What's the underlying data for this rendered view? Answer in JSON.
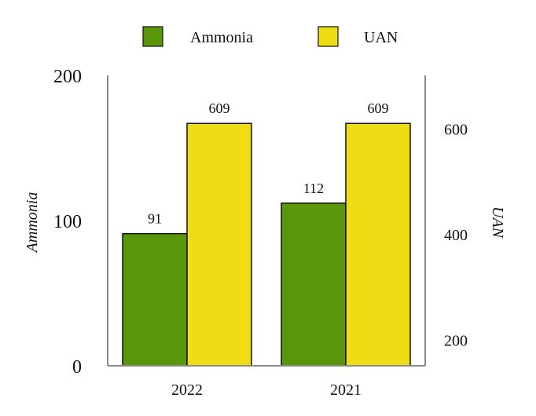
{
  "chart_data": {
    "type": "bar",
    "categories": [
      "2022",
      "2021"
    ],
    "series": [
      {
        "name": "Ammonia",
        "values": [
          91,
          112
        ],
        "axis": "left",
        "color": "#5a960a"
      },
      {
        "name": "UAN",
        "values": [
          609,
          609
        ],
        "axis": "right",
        "color": "#eedd14"
      }
    ],
    "title": "",
    "xlabel": "",
    "ylabel_left": "Ammonia",
    "ylabel_right": "UAN",
    "ylim_left": [
      0,
      200
    ],
    "yticks_left": [
      0,
      100,
      200
    ],
    "ylim_right": [
      150,
      700
    ],
    "yticks_right": [
      200,
      400,
      600
    ],
    "grid": false,
    "legend_position": "top-center",
    "data_labels": true
  }
}
